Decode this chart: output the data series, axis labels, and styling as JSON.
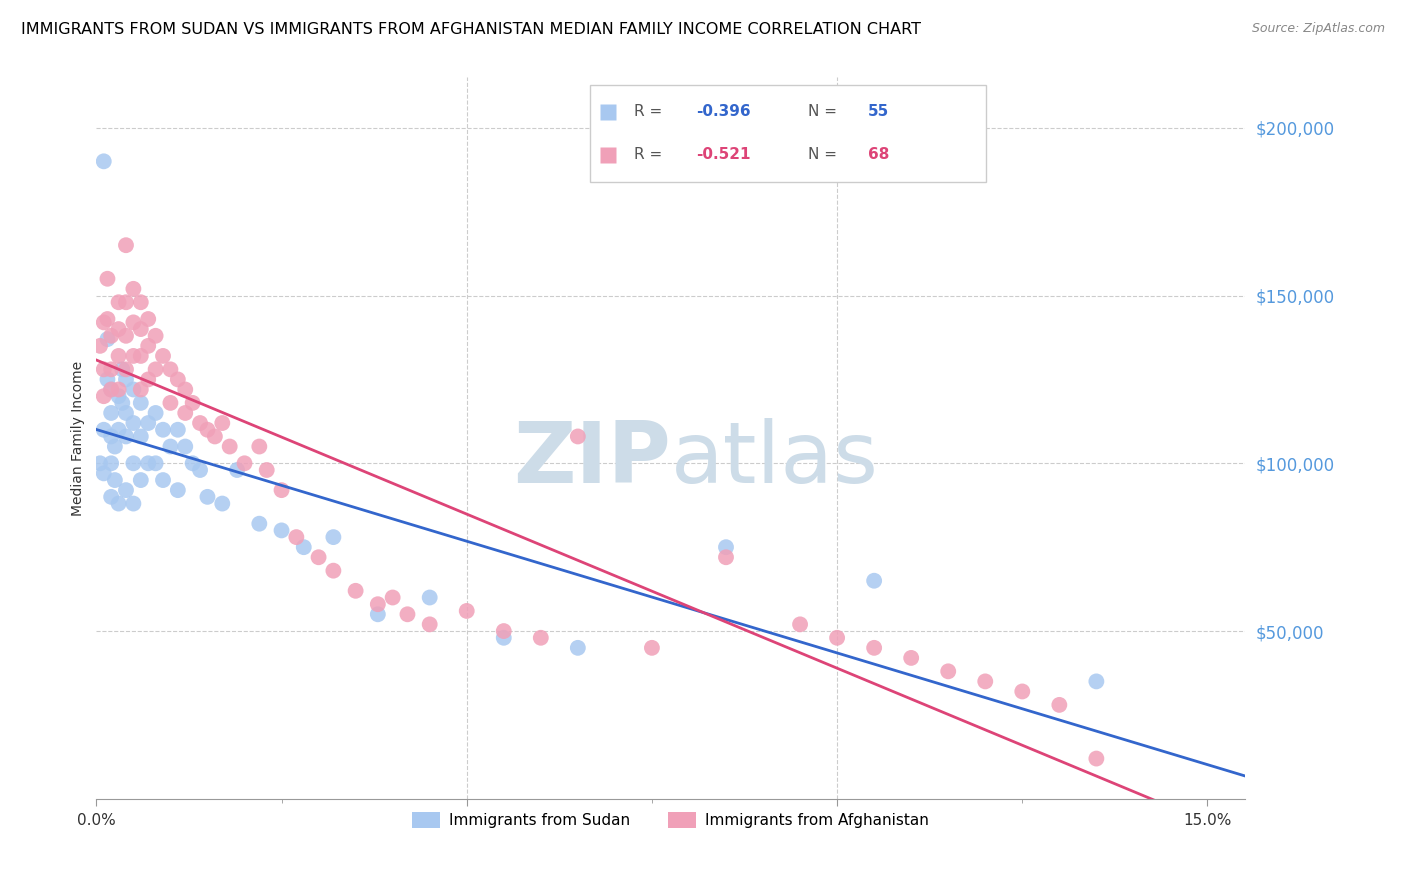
{
  "title": "IMMIGRANTS FROM SUDAN VS IMMIGRANTS FROM AFGHANISTAN MEDIAN FAMILY INCOME CORRELATION CHART",
  "source": "Source: ZipAtlas.com",
  "ylabel": "Median Family Income",
  "ymin": 0,
  "ymax": 215000,
  "xmin": 0.0,
  "xmax": 0.155,
  "color_sudan": "#a8c8f0",
  "color_afghanistan": "#f0a0b8",
  "color_line_sudan": "#3366cc",
  "color_line_afgh": "#dd4477",
  "color_ytick_labels": "#5599dd",
  "color_grid": "#cccccc",
  "watermark_color": "#cddce8",
  "title_fontsize": 11.5,
  "source_fontsize": 9,
  "sudan_x": [
    0.0005,
    0.001,
    0.001,
    0.001,
    0.0015,
    0.0015,
    0.002,
    0.002,
    0.002,
    0.002,
    0.002,
    0.0025,
    0.0025,
    0.003,
    0.003,
    0.003,
    0.0035,
    0.0035,
    0.004,
    0.004,
    0.004,
    0.004,
    0.005,
    0.005,
    0.005,
    0.005,
    0.006,
    0.006,
    0.006,
    0.007,
    0.007,
    0.008,
    0.008,
    0.009,
    0.009,
    0.01,
    0.011,
    0.011,
    0.012,
    0.013,
    0.014,
    0.015,
    0.017,
    0.019,
    0.022,
    0.025,
    0.028,
    0.032,
    0.038,
    0.045,
    0.055,
    0.065,
    0.085,
    0.105,
    0.135
  ],
  "sudan_y": [
    100000,
    190000,
    110000,
    97000,
    137000,
    125000,
    122000,
    115000,
    108000,
    100000,
    90000,
    105000,
    95000,
    120000,
    110000,
    88000,
    128000,
    118000,
    125000,
    115000,
    108000,
    92000,
    122000,
    112000,
    100000,
    88000,
    118000,
    108000,
    95000,
    112000,
    100000,
    115000,
    100000,
    110000,
    95000,
    105000,
    110000,
    92000,
    105000,
    100000,
    98000,
    90000,
    88000,
    98000,
    82000,
    80000,
    75000,
    78000,
    55000,
    60000,
    48000,
    45000,
    75000,
    65000,
    35000
  ],
  "afgh_x": [
    0.0005,
    0.001,
    0.001,
    0.001,
    0.0015,
    0.0015,
    0.002,
    0.002,
    0.002,
    0.003,
    0.003,
    0.003,
    0.003,
    0.004,
    0.004,
    0.004,
    0.004,
    0.005,
    0.005,
    0.005,
    0.006,
    0.006,
    0.006,
    0.006,
    0.007,
    0.007,
    0.007,
    0.008,
    0.008,
    0.009,
    0.01,
    0.01,
    0.011,
    0.012,
    0.012,
    0.013,
    0.014,
    0.015,
    0.016,
    0.017,
    0.018,
    0.02,
    0.022,
    0.023,
    0.025,
    0.027,
    0.03,
    0.032,
    0.035,
    0.038,
    0.04,
    0.042,
    0.045,
    0.05,
    0.055,
    0.06,
    0.065,
    0.075,
    0.085,
    0.095,
    0.1,
    0.105,
    0.11,
    0.115,
    0.12,
    0.125,
    0.13,
    0.135
  ],
  "afgh_y": [
    135000,
    142000,
    128000,
    120000,
    155000,
    143000,
    138000,
    128000,
    122000,
    148000,
    140000,
    132000,
    122000,
    165000,
    148000,
    138000,
    128000,
    152000,
    142000,
    132000,
    148000,
    140000,
    132000,
    122000,
    143000,
    135000,
    125000,
    138000,
    128000,
    132000,
    128000,
    118000,
    125000,
    122000,
    115000,
    118000,
    112000,
    110000,
    108000,
    112000,
    105000,
    100000,
    105000,
    98000,
    92000,
    78000,
    72000,
    68000,
    62000,
    58000,
    60000,
    55000,
    52000,
    56000,
    50000,
    48000,
    108000,
    45000,
    72000,
    52000,
    48000,
    45000,
    42000,
    38000,
    35000,
    32000,
    28000,
    12000
  ]
}
